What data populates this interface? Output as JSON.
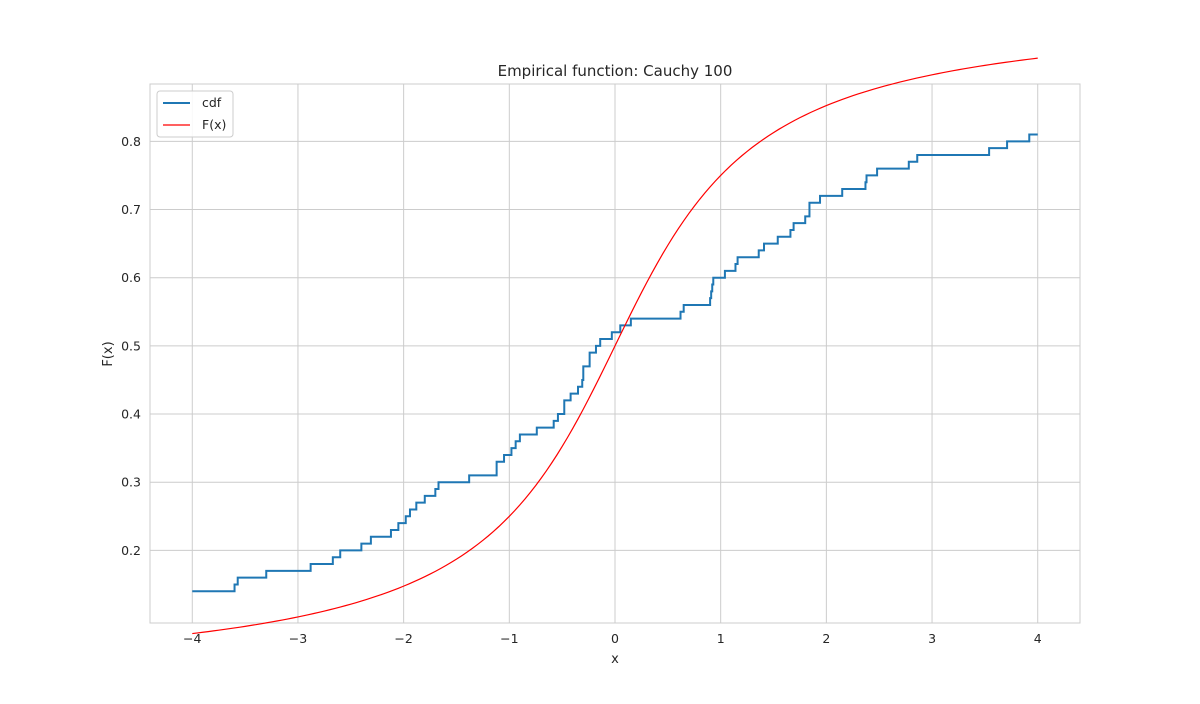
{
  "chart_data": {
    "type": "line",
    "title": "Empirical function: Cauchy 100",
    "xlabel": "x",
    "ylabel": "F(x)",
    "xlim": [
      -4.4,
      4.4
    ],
    "ylim": [
      0.0935,
      0.8841
    ],
    "xticks": [
      -4,
      -3,
      -2,
      -1,
      0,
      1,
      2,
      3,
      4
    ],
    "xtick_labels": [
      "−4",
      "−3",
      "−2",
      "−1",
      "0",
      "1",
      "2",
      "3",
      "4"
    ],
    "yticks": [
      0.2,
      0.3,
      0.4,
      0.5,
      0.6,
      0.7,
      0.8
    ],
    "ytick_labels": [
      "0.2",
      "0.3",
      "0.4",
      "0.5",
      "0.6",
      "0.7",
      "0.8"
    ],
    "grid": true,
    "legend_position": "top-left",
    "series": [
      {
        "name": "cdf",
        "kind": "step",
        "color": "#1f77b4",
        "x": [
          -4.0,
          -3.6,
          -3.57,
          -3.3,
          -2.88,
          -2.67,
          -2.6,
          -2.4,
          -2.31,
          -2.12,
          -2.05,
          -1.98,
          -1.94,
          -1.88,
          -1.8,
          -1.7,
          -1.67,
          -1.64,
          -1.38,
          -1.12,
          -1.05,
          -0.98,
          -0.94,
          -0.9,
          -0.87,
          -0.74,
          -0.58,
          -0.54,
          -0.48,
          -0.42,
          -0.35,
          -0.31,
          -0.3,
          -0.24,
          -0.18,
          -0.14,
          -0.03,
          -0.02,
          0.05,
          0.15,
          0.62,
          0.65,
          0.9,
          0.91,
          0.92,
          0.93,
          0.95,
          1.04,
          1.14,
          1.16,
          1.36,
          1.41,
          1.54,
          1.66,
          1.69,
          1.8,
          1.84,
          1.94,
          2.15,
          2.37,
          2.38,
          2.48,
          2.78,
          2.86,
          3.54,
          3.71,
          3.92,
          4.0
        ],
        "y": [
          0.14,
          0.15,
          0.16,
          0.17,
          0.18,
          0.19,
          0.2,
          0.21,
          0.22,
          0.23,
          0.24,
          0.25,
          0.26,
          0.27,
          0.28,
          0.29,
          0.3,
          0.3,
          0.31,
          0.33,
          0.34,
          0.35,
          0.36,
          0.37,
          0.37,
          0.38,
          0.39,
          0.4,
          0.42,
          0.43,
          0.44,
          0.45,
          0.47,
          0.49,
          0.5,
          0.51,
          0.52,
          0.52,
          0.53,
          0.54,
          0.55,
          0.56,
          0.57,
          0.58,
          0.59,
          0.6,
          0.6,
          0.61,
          0.62,
          0.63,
          0.64,
          0.65,
          0.66,
          0.67,
          0.68,
          0.69,
          0.71,
          0.72,
          0.73,
          0.74,
          0.75,
          0.76,
          0.77,
          0.78,
          0.79,
          0.8,
          0.81,
          0.81
        ]
      },
      {
        "name": "F(x)",
        "kind": "line",
        "color": "#ff0000",
        "x": [
          -4.0,
          -3.5,
          -3.0,
          -2.5,
          -2.0,
          -1.5,
          -1.0,
          -0.75,
          -0.5,
          -0.25,
          0.0,
          0.25,
          0.5,
          0.75,
          1.0,
          1.5,
          2.0,
          2.5,
          3.0,
          3.5,
          4.0
        ],
        "y": [
          0.1476,
          0.1614,
          0.1024,
          0.1211,
          0.1476,
          0.1872,
          0.25,
          0.2952,
          0.3524,
          0.422,
          0.5,
          0.578,
          0.6476,
          0.7048,
          0.75,
          0.8128,
          0.8524,
          0.8789,
          0.8976,
          0.9114,
          0.922
        ]
      }
    ]
  }
}
